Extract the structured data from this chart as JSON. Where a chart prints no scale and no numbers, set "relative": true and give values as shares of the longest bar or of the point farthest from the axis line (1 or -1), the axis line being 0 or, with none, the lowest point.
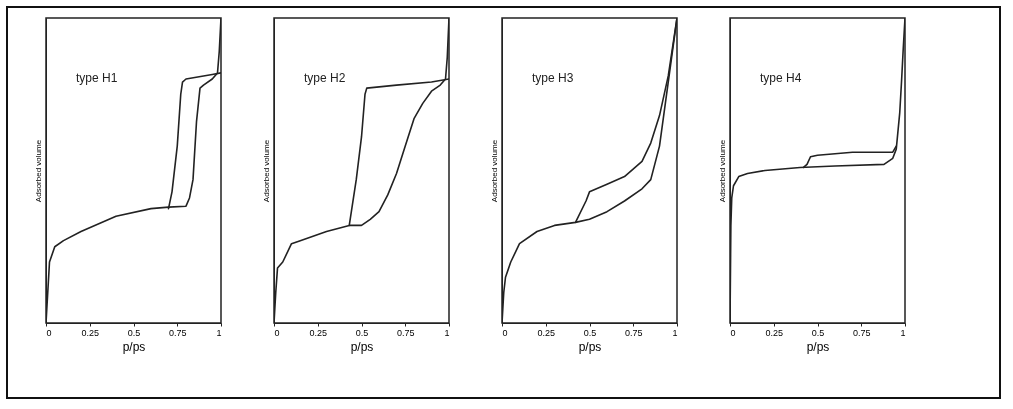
{
  "chart_data": [
    {
      "type": "line",
      "relative": true,
      "xlabel": "p/ps",
      "ylabel": "Adsorbed volume",
      "annotations": [
        "type H1"
      ],
      "xlim": [
        0,
        1
      ],
      "xticks": [
        0,
        0.25,
        0.5,
        0.75,
        1
      ],
      "series": [
        {
          "color": "#222222",
          "x": [
            0,
            0.01,
            0.02,
            0.05,
            0.1,
            0.2,
            0.4,
            0.6,
            0.7,
            0.8,
            0.82,
            0.84,
            0.86,
            0.88,
            0.9,
            0.95,
            0.98,
            0.99,
            1
          ],
          "values": [
            0,
            0.1,
            0.2,
            0.25,
            0.27,
            0.3,
            0.35,
            0.375,
            0.38,
            0.383,
            0.41,
            0.47,
            0.66,
            0.77,
            0.78,
            0.8,
            0.82,
            0.89,
            1
          ]
        },
        {
          "color": "#222222",
          "x": [
            1,
            0.95,
            0.8,
            0.78,
            0.77,
            0.75,
            0.72,
            0.7
          ],
          "values": [
            0.82,
            0.815,
            0.8,
            0.79,
            0.75,
            0.58,
            0.43,
            0.375
          ]
        }
      ]
    },
    {
      "type": "line",
      "relative": true,
      "xlabel": "p/ps",
      "ylabel": "Adsorbed volume",
      "annotations": [
        "type H2"
      ],
      "xlim": [
        0,
        1
      ],
      "xticks": [
        0,
        0.25,
        0.5,
        0.75,
        1
      ],
      "series": [
        {
          "color": "#222222",
          "x": [
            0,
            0.01,
            0.02,
            0.05,
            0.1,
            0.15,
            0.3,
            0.43,
            0.5,
            0.55,
            0.6,
            0.65,
            0.7,
            0.75,
            0.8,
            0.85,
            0.9,
            0.95,
            0.98,
            0.99,
            1
          ],
          "values": [
            0,
            0.1,
            0.18,
            0.2,
            0.26,
            0.27,
            0.3,
            0.32,
            0.32,
            0.34,
            0.365,
            0.42,
            0.49,
            0.58,
            0.67,
            0.72,
            0.76,
            0.78,
            0.8,
            0.87,
            1
          ]
        },
        {
          "color": "#222222",
          "x": [
            1,
            0.9,
            0.7,
            0.53,
            0.52,
            0.5,
            0.47,
            0.43
          ],
          "values": [
            0.8,
            0.79,
            0.78,
            0.77,
            0.75,
            0.61,
            0.47,
            0.32
          ]
        }
      ]
    },
    {
      "type": "line",
      "relative": true,
      "xlabel": "p/ps",
      "ylabel": "Adsorbed volume",
      "annotations": [
        "type H3"
      ],
      "xlim": [
        0,
        1
      ],
      "xticks": [
        0,
        0.25,
        0.5,
        0.75,
        1
      ],
      "series": [
        {
          "color": "#222222",
          "x": [
            0,
            0.01,
            0.02,
            0.05,
            0.1,
            0.2,
            0.3,
            0.42,
            0.5,
            0.6,
            0.7,
            0.8,
            0.85,
            0.9,
            0.95,
            1
          ],
          "values": [
            0,
            0.1,
            0.15,
            0.2,
            0.26,
            0.3,
            0.32,
            0.33,
            0.34,
            0.365,
            0.4,
            0.44,
            0.47,
            0.58,
            0.79,
            1
          ]
        },
        {
          "color": "#222222",
          "x": [
            1,
            0.95,
            0.9,
            0.85,
            0.8,
            0.7,
            0.6,
            0.5,
            0.48,
            0.42
          ],
          "values": [
            1,
            0.81,
            0.68,
            0.59,
            0.53,
            0.48,
            0.455,
            0.43,
            0.4,
            0.33
          ]
        }
      ]
    },
    {
      "type": "line",
      "relative": true,
      "xlabel": "p/ps",
      "ylabel": "Adsorbed volume",
      "annotations": [
        "type H4"
      ],
      "xlim": [
        0,
        1
      ],
      "xticks": [
        0,
        0.25,
        0.5,
        0.75,
        1
      ],
      "series": [
        {
          "color": "#222222",
          "x": [
            0,
            0.005,
            0.01,
            0.02,
            0.05,
            0.1,
            0.2,
            0.4,
            0.6,
            0.88,
            0.93,
            0.95,
            0.97,
            0.98,
            0.99,
            1
          ],
          "values": [
            0,
            0.32,
            0.41,
            0.45,
            0.48,
            0.49,
            0.5,
            0.51,
            0.515,
            0.52,
            0.54,
            0.57,
            0.69,
            0.79,
            0.9,
            1
          ]
        },
        {
          "color": "#222222",
          "x": [
            0.95,
            0.93,
            0.7,
            0.5,
            0.46,
            0.44,
            0.42
          ],
          "values": [
            0.58,
            0.56,
            0.56,
            0.55,
            0.545,
            0.52,
            0.51
          ]
        }
      ]
    }
  ]
}
